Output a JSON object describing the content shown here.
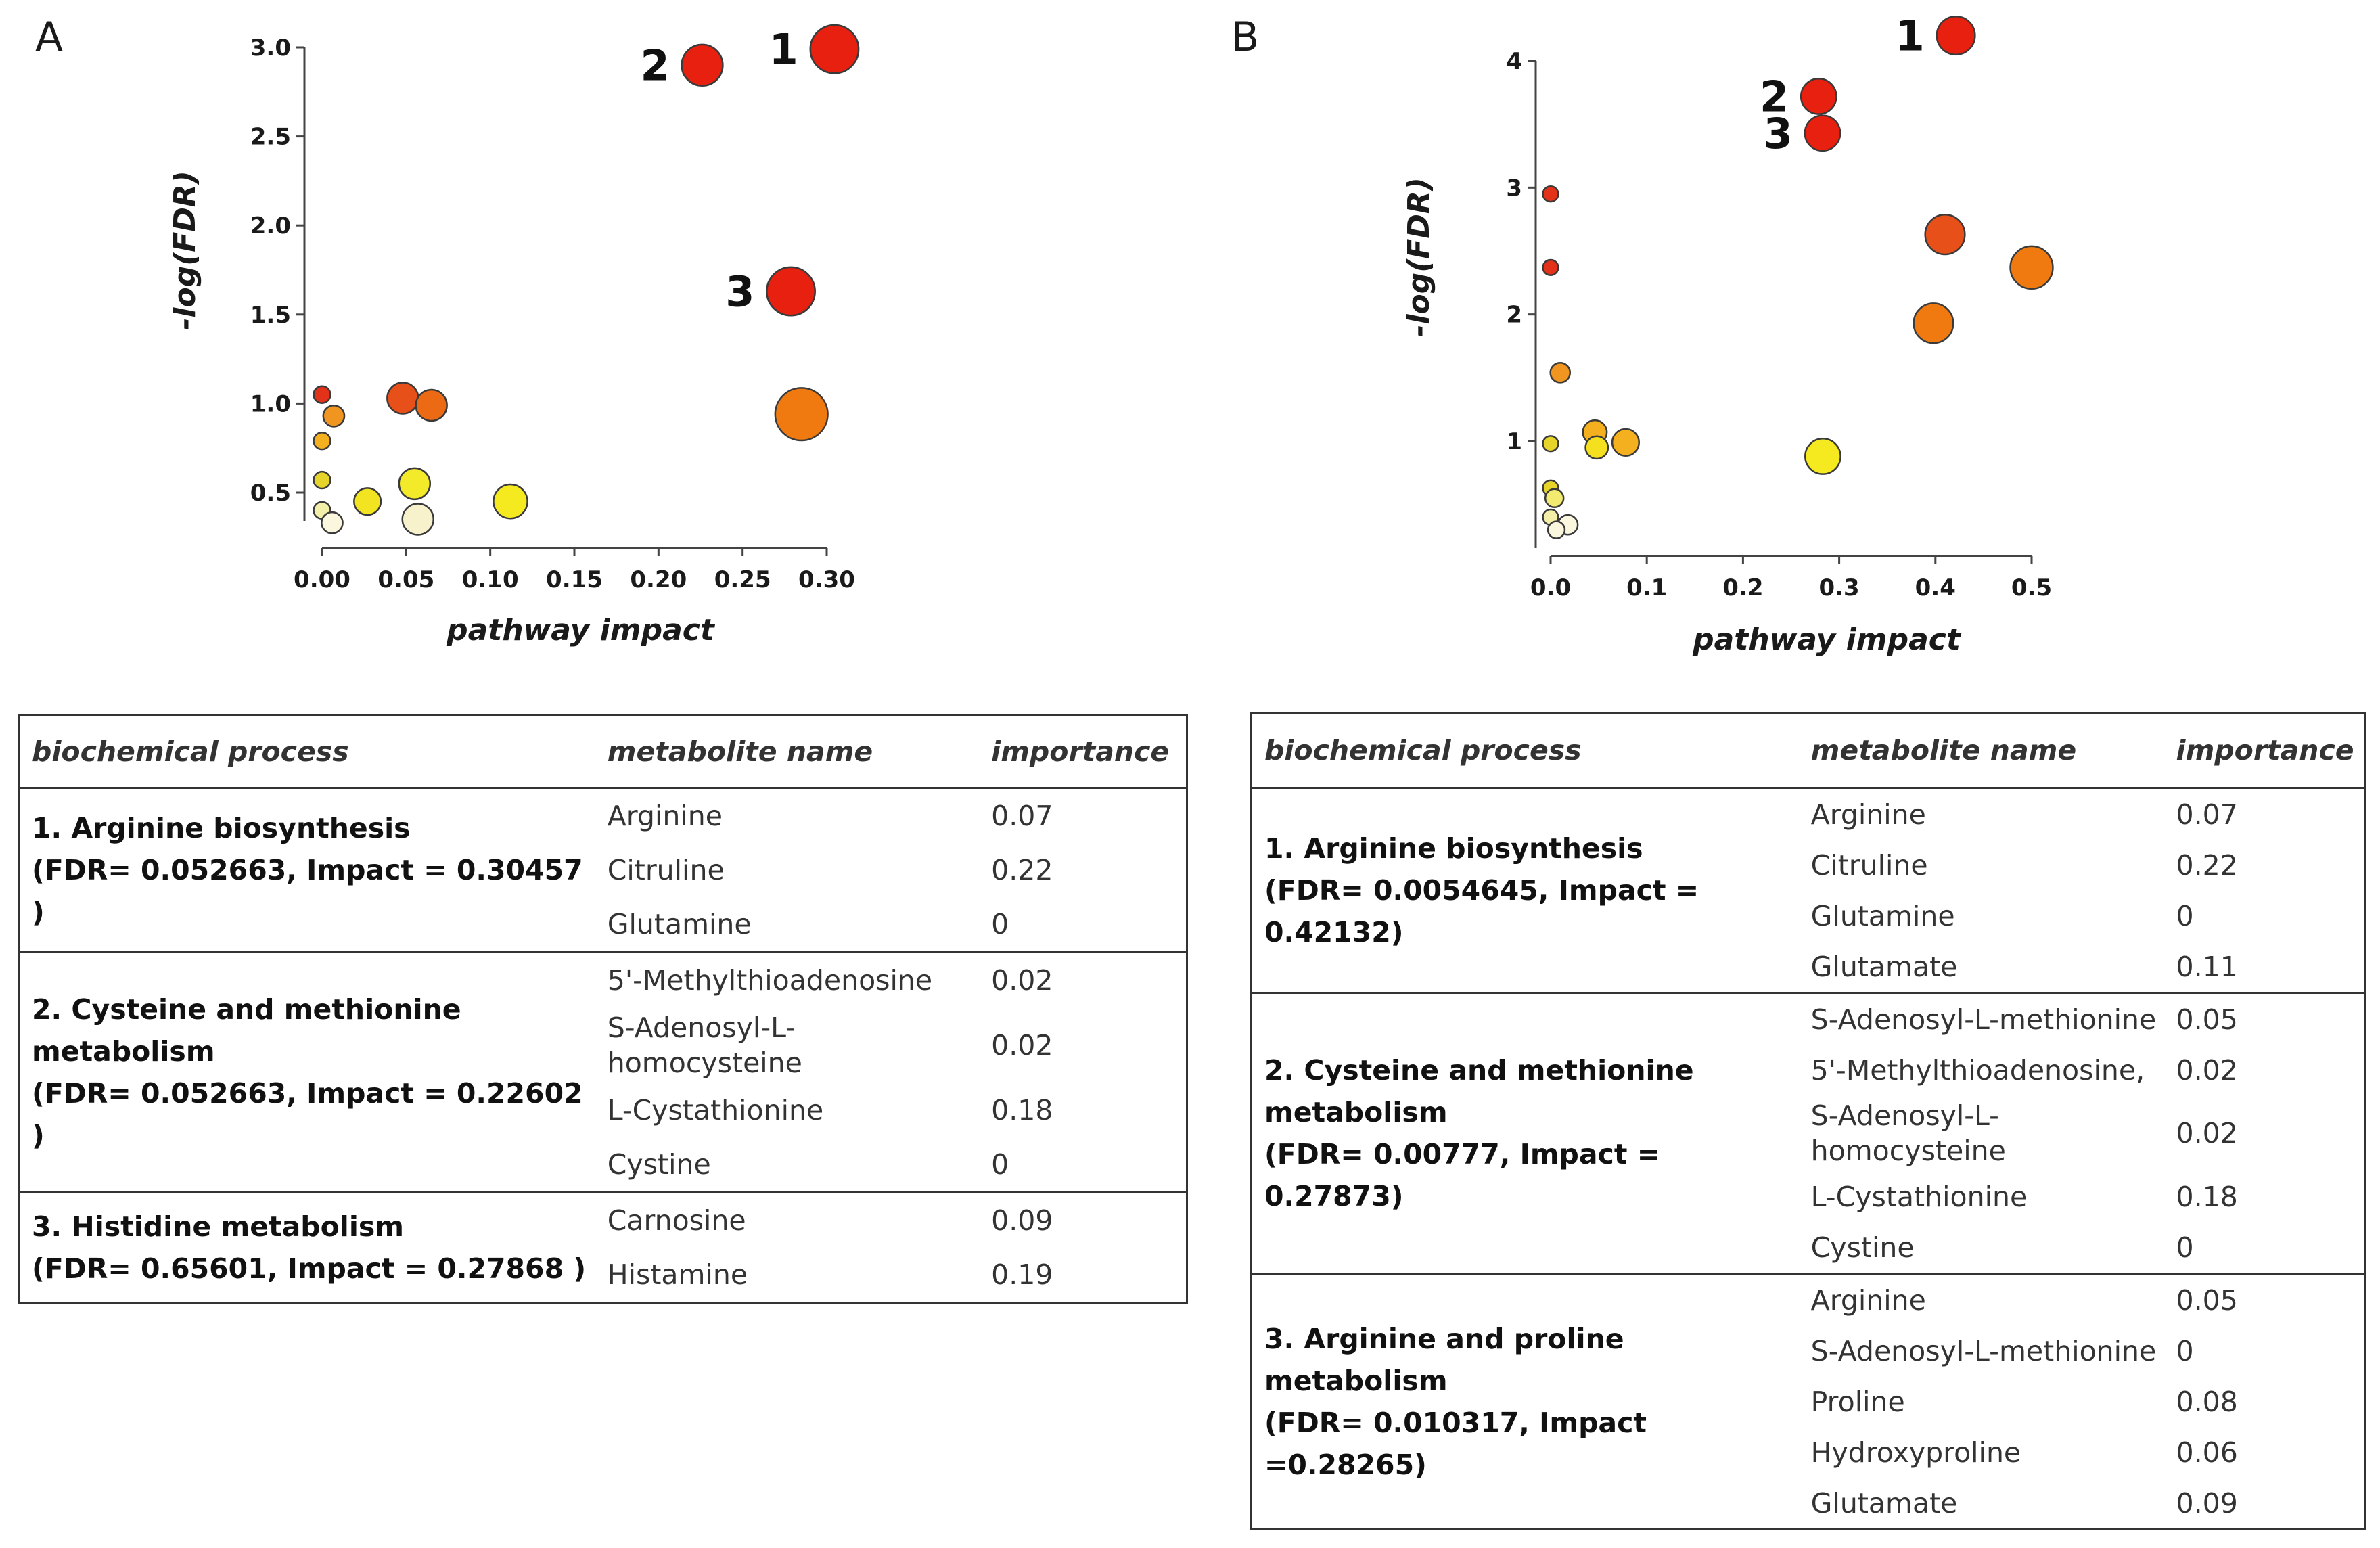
{
  "panels": {
    "a": "A",
    "b": "B"
  },
  "chart_data": [
    {
      "type": "scatter",
      "panel": "A",
      "xlabel": "pathway impact",
      "ylabel": "-log(FDR)",
      "xlim": [
        0,
        0.3
      ],
      "ylim": [
        0.3,
        3.0
      ],
      "xticks": [
        "0.00",
        "0.05",
        "0.10",
        "0.15",
        "0.20",
        "0.25",
        "0.30"
      ],
      "xtick_values": [
        0,
        0.05,
        0.1,
        0.15,
        0.2,
        0.25,
        0.3
      ],
      "yticks": [
        "0.5",
        "1.0",
        "1.5",
        "2.0",
        "2.5",
        "3.0"
      ],
      "ytick_values": [
        0.5,
        1.0,
        1.5,
        2.0,
        2.5,
        3.0
      ],
      "points": [
        {
          "x": 0.3046,
          "y": 2.99,
          "size": 3,
          "color": "#e8200f",
          "label": "1"
        },
        {
          "x": 0.226,
          "y": 2.9,
          "size": 2.5,
          "color": "#e8200f",
          "label": "2"
        },
        {
          "x": 0.2787,
          "y": 1.63,
          "size": 3,
          "color": "#e8200f",
          "label": "3"
        },
        {
          "x": 0.285,
          "y": 0.94,
          "size": 3.3,
          "color": "#f07a10",
          "label": ""
        },
        {
          "x": 0.048,
          "y": 1.03,
          "size": 1.8,
          "color": "#e8501a",
          "label": ""
        },
        {
          "x": 0.065,
          "y": 0.99,
          "size": 1.8,
          "color": "#ed6a14",
          "label": ""
        },
        {
          "x": 0.0,
          "y": 1.05,
          "size": 0.8,
          "color": "#e2321a",
          "label": ""
        },
        {
          "x": 0.007,
          "y": 0.93,
          "size": 1.1,
          "color": "#f09520",
          "label": ""
        },
        {
          "x": 0.0,
          "y": 0.79,
          "size": 0.8,
          "color": "#f5b020",
          "label": ""
        },
        {
          "x": 0.0,
          "y": 0.57,
          "size": 0.8,
          "color": "#e6d42a",
          "label": ""
        },
        {
          "x": 0.027,
          "y": 0.45,
          "size": 1.5,
          "color": "#f2e420",
          "label": ""
        },
        {
          "x": 0.055,
          "y": 0.55,
          "size": 1.8,
          "color": "#f3ea2a",
          "label": ""
        },
        {
          "x": 0.112,
          "y": 0.45,
          "size": 2.0,
          "color": "#f5ea20",
          "label": ""
        },
        {
          "x": 0.0,
          "y": 0.4,
          "size": 0.8,
          "color": "#f3eea8",
          "label": ""
        },
        {
          "x": 0.006,
          "y": 0.33,
          "size": 1.1,
          "color": "#fbf7de",
          "label": ""
        },
        {
          "x": 0.057,
          "y": 0.35,
          "size": 1.8,
          "color": "#f8f2cc",
          "label": ""
        }
      ]
    },
    {
      "type": "scatter",
      "panel": "B",
      "xlabel": "pathway impact",
      "ylabel": "-log(FDR)",
      "xlim": [
        0,
        0.5
      ],
      "ylim": [
        0.3,
        4.0
      ],
      "xticks": [
        "0.0",
        "0.1",
        "0.2",
        "0.3",
        "0.4",
        "0.5"
      ],
      "xtick_values": [
        0,
        0.1,
        0.2,
        0.3,
        0.4,
        0.5
      ],
      "yticks": [
        "1",
        "2",
        "3",
        "4"
      ],
      "ytick_values": [
        1,
        2,
        3,
        4
      ],
      "points": [
        {
          "x": 0.4213,
          "y": 4.2,
          "size": 2.3,
          "color": "#e8200f",
          "label": "1"
        },
        {
          "x": 0.2787,
          "y": 3.72,
          "size": 2.1,
          "color": "#e8200f",
          "label": "2"
        },
        {
          "x": 0.2827,
          "y": 3.43,
          "size": 2.1,
          "color": "#e8200f",
          "label": "3"
        },
        {
          "x": 0.41,
          "y": 2.63,
          "size": 2.4,
          "color": "#e8501a",
          "label": ""
        },
        {
          "x": 0.5,
          "y": 2.37,
          "size": 2.6,
          "color": "#f07a10",
          "label": ""
        },
        {
          "x": 0.398,
          "y": 1.93,
          "size": 2.4,
          "color": "#f07a10",
          "label": ""
        },
        {
          "x": 0.0,
          "y": 2.95,
          "size": 0.7,
          "color": "#e2321a",
          "label": ""
        },
        {
          "x": 0.0,
          "y": 2.37,
          "size": 0.7,
          "color": "#e2321a",
          "label": ""
        },
        {
          "x": 0.01,
          "y": 1.54,
          "size": 1.0,
          "color": "#f09520",
          "label": ""
        },
        {
          "x": 0.046,
          "y": 1.07,
          "size": 1.3,
          "color": "#f5b020",
          "label": ""
        },
        {
          "x": 0.078,
          "y": 0.99,
          "size": 1.5,
          "color": "#f5b020",
          "label": ""
        },
        {
          "x": 0.0,
          "y": 0.98,
          "size": 0.7,
          "color": "#e6d42a",
          "label": ""
        },
        {
          "x": 0.048,
          "y": 0.95,
          "size": 1.2,
          "color": "#f5e020",
          "label": ""
        },
        {
          "x": 0.283,
          "y": 0.88,
          "size": 2.1,
          "color": "#f5ea20",
          "label": ""
        },
        {
          "x": 0.0,
          "y": 0.63,
          "size": 0.7,
          "color": "#e6d42a",
          "label": ""
        },
        {
          "x": 0.004,
          "y": 0.55,
          "size": 0.9,
          "color": "#f3ea70",
          "label": ""
        },
        {
          "x": 0.0,
          "y": 0.4,
          "size": 0.7,
          "color": "#f3eea8",
          "label": ""
        },
        {
          "x": 0.018,
          "y": 0.34,
          "size": 1.0,
          "color": "#fbf7de",
          "label": ""
        },
        {
          "x": 0.006,
          "y": 0.3,
          "size": 0.8,
          "color": "#fbf7de",
          "label": ""
        }
      ]
    }
  ],
  "table_a": {
    "headers": [
      "biochemical process",
      "metabolite name",
      "importance"
    ],
    "groups": [
      {
        "process": "1. Arginine biosynthesis",
        "stats": "(FDR= 0.052663, Impact = 0.30457 )",
        "rows": [
          [
            "Arginine",
            "0.07"
          ],
          [
            "Citruline",
            "0.22"
          ],
          [
            "Glutamine",
            "0"
          ]
        ]
      },
      {
        "process": "2. Cysteine and methionine metabolism",
        "stats": "(FDR= 0.052663, Impact = 0.22602 )",
        "rows": [
          [
            "5'-Methylthioadenosine",
            "0.02"
          ],
          [
            "S-Adenosyl-L-homocysteine",
            "0.02"
          ],
          [
            "L-Cystathionine",
            "0.18"
          ],
          [
            "Cystine",
            "0"
          ]
        ]
      },
      {
        "process": "3. Histidine metabolism",
        "stats": "(FDR= 0.65601, Impact = 0.27868 )",
        "rows": [
          [
            "Carnosine",
            "0.09"
          ],
          [
            "Histamine",
            "0.19"
          ]
        ]
      }
    ]
  },
  "table_b": {
    "headers": [
      "biochemical process",
      "metabolite name",
      "importance"
    ],
    "groups": [
      {
        "process": "1. Arginine biosynthesis",
        "stats": "(FDR= 0.0054645, Impact = 0.42132)",
        "rows": [
          [
            "Arginine",
            "0.07"
          ],
          [
            "Citruline",
            "0.22"
          ],
          [
            "Glutamine",
            "0"
          ],
          [
            "Glutamate",
            "0.11"
          ]
        ]
      },
      {
        "process": "2. Cysteine and methionine metabolism",
        "stats": "(FDR= 0.00777, Impact = 0.27873)",
        "rows": [
          [
            "S-Adenosyl-L-methionine",
            "0.05"
          ],
          [
            "5'-Methylthioadenosine,",
            "0.02"
          ],
          [
            "S-Adenosyl-L-homocysteine",
            "0.02"
          ],
          [
            "L-Cystathionine",
            "0.18"
          ],
          [
            "Cystine",
            "0"
          ]
        ]
      },
      {
        "process": "3. Arginine and proline metabolism",
        "stats": "(FDR= 0.010317, Impact =0.28265)",
        "rows": [
          [
            "Arginine",
            "0.05"
          ],
          [
            "S-Adenosyl-L-methionine",
            "0"
          ],
          [
            "Proline",
            "0.08"
          ],
          [
            "Hydroxyproline",
            "0.06"
          ],
          [
            "Glutamate",
            "0.09"
          ]
        ]
      }
    ]
  }
}
